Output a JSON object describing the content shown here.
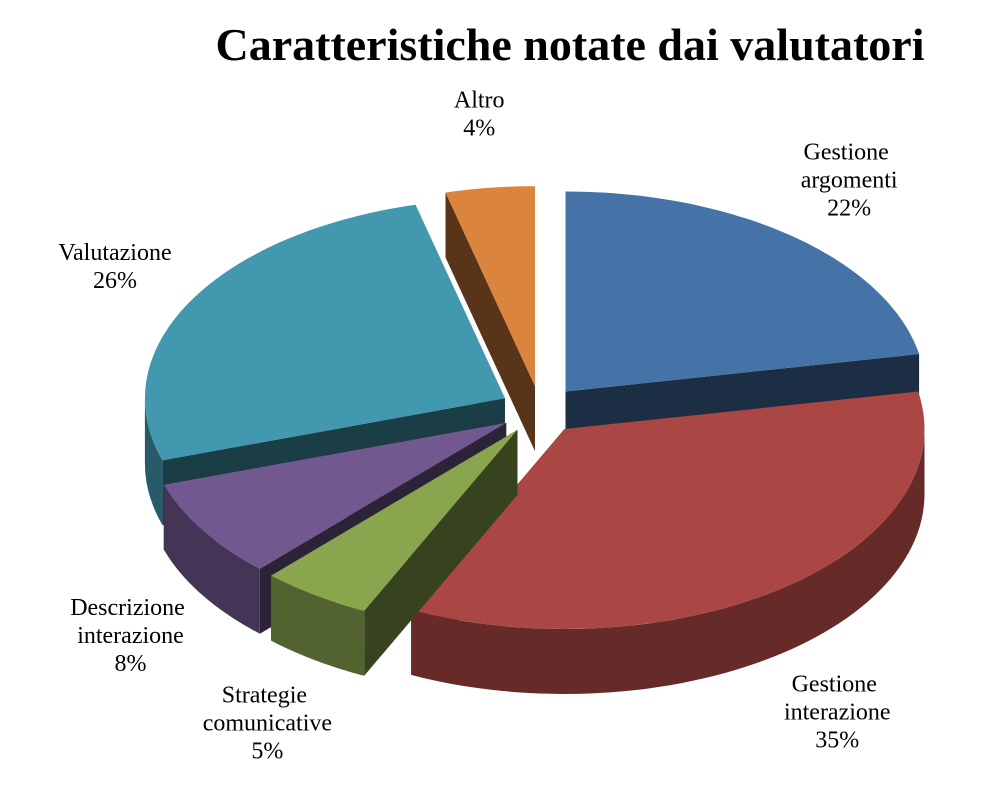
{
  "chart_data": {
    "type": "pie",
    "title": "Caratteristiche notate dai valutatori",
    "categories": [
      "Gestione argomenti",
      "Gestione interazione",
      "Strategie comunicative",
      "Descrizione interazione",
      "Valutazione",
      "Altro"
    ],
    "values": [
      22,
      35,
      5,
      8,
      26,
      4
    ],
    "value_labels": [
      "22%",
      "35%",
      "5%",
      "8%",
      "26%",
      "4%"
    ],
    "colors": [
      "#4572a7",
      "#aa4643",
      "#89a54e",
      "#71588f",
      "#4198af",
      "#db843d"
    ]
  }
}
